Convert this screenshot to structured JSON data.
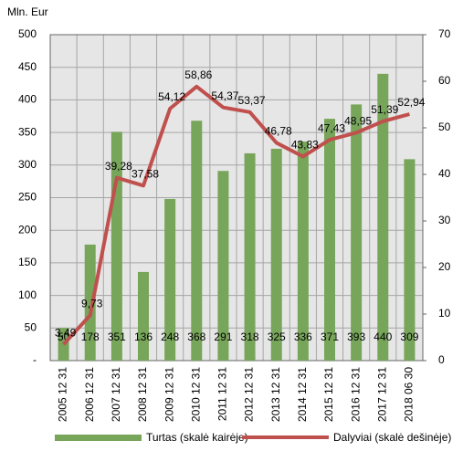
{
  "chart_data": {
    "type": "bar-line",
    "y_label": "Mln. Eur",
    "categories": [
      "2005 12 31",
      "2006 12 31",
      "2007 12 31",
      "2008 12 31",
      "2009 12 31",
      "2010 12 31",
      "2011 12 31",
      "2012 12 31",
      "2013 12 31",
      "2014 12 31",
      "2015 12 31",
      "2016 12 31",
      "2017 12 31",
      "2018 06 30"
    ],
    "series": [
      {
        "name": "Turtas (skalė kairėje)",
        "type": "bar",
        "color": "#77a55a",
        "values": [
          50,
          178,
          351,
          136,
          248,
          368,
          291,
          318,
          325,
          336,
          371,
          393,
          440,
          309
        ]
      },
      {
        "name": "Dalyviai (skalė dešinėje)",
        "type": "line",
        "axis": "y2",
        "color": "#c0504d",
        "values": [
          3.49,
          9.73,
          39.28,
          37.58,
          54.12,
          58.86,
          54.37,
          53.37,
          46.78,
          43.83,
          47.43,
          48.95,
          51.39,
          52.94
        ],
        "value_labels": [
          "3,49",
          "9,73",
          "39,28",
          "37,58",
          "54,12",
          "58,86",
          "54,37",
          "53,37",
          "46,78",
          "43,83",
          "47,43",
          "48,95",
          "51,39",
          "52,94"
        ]
      }
    ],
    "ylim": [
      0,
      500
    ],
    "yticks": [
      {
        "value": 0,
        "label": "-"
      },
      50,
      100,
      150,
      200,
      250,
      300,
      350,
      400,
      450,
      500
    ],
    "y2lim": [
      0,
      70
    ],
    "y2ticks": [
      0,
      10,
      20,
      30,
      40,
      50,
      60,
      70
    ],
    "grid": true,
    "legend": "bottom"
  }
}
